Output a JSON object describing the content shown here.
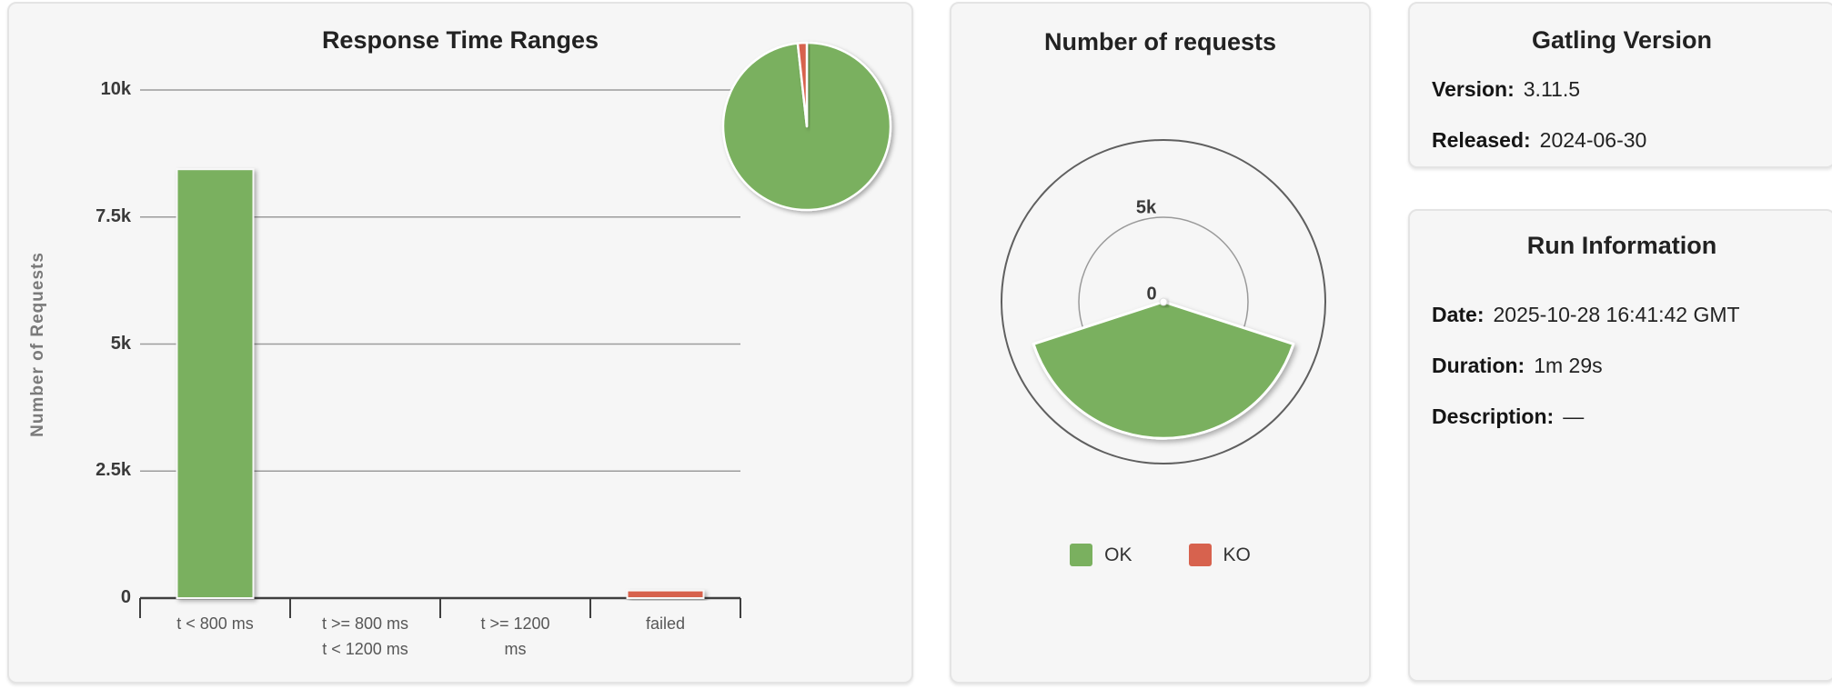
{
  "panels": {
    "response_time_ranges": {
      "title": "Response Time Ranges",
      "ylabel": "Number of Requests"
    },
    "number_of_requests": {
      "title": "Number of requests",
      "legend": {
        "ok": "OK",
        "ko": "KO"
      }
    },
    "gatling_version": {
      "title": "Gatling Version",
      "rows": [
        {
          "label": "Version:",
          "value": "3.11.5"
        },
        {
          "label": "Released:",
          "value": "2024-06-30"
        }
      ]
    },
    "run_information": {
      "title": "Run Information",
      "rows": [
        {
          "label": "Date:",
          "value": "2025-10-28 16:41:42 GMT"
        },
        {
          "label": "Duration:",
          "value": "1m 29s"
        },
        {
          "label": "Description:",
          "value": "—"
        }
      ]
    }
  },
  "colors": {
    "ok_green": "#7ab05f",
    "ko_red": "#d7624e",
    "grid": "#9c9c9c",
    "axis": "#3f3f3f",
    "outer_ring": "#5f5f5f",
    "inner_ring": "#9a9a9a",
    "panel_bg": "#f6f6f6"
  },
  "chart_data": [
    {
      "type": "bar",
      "title": "Response Time Ranges",
      "xlabel": "",
      "ylabel": "Number of Requests",
      "categories": [
        [
          "t < 800 ms"
        ],
        [
          "t >= 800 ms",
          "t < 1200 ms"
        ],
        [
          "t >= 1200",
          "ms"
        ],
        [
          "failed"
        ]
      ],
      "values": [
        8440,
        0,
        0,
        150
      ],
      "bar_colors": [
        "#7ab05f",
        "#7ab05f",
        "#7ab05f",
        "#d7624e"
      ],
      "ylim": [
        0,
        10000
      ],
      "yticks": [
        0,
        2500,
        5000,
        7500,
        10000
      ],
      "ytick_labels": [
        "0",
        "2.5k",
        "5k",
        "7.5k",
        "10k"
      ],
      "grid": true,
      "legend_position": "none"
    },
    {
      "type": "pie",
      "title": "",
      "series": [
        {
          "name": "OK",
          "value": 8440,
          "color": "#7ab05f"
        },
        {
          "name": "KO",
          "value": 150,
          "color": "#d7624e"
        }
      ],
      "start_angle_deg": 0,
      "direction": "clockwise"
    },
    {
      "type": "polar-gauge",
      "title": "Number of requests",
      "series": [
        {
          "name": "OK",
          "value": 8440,
          "color": "#7ab05f"
        },
        {
          "name": "KO",
          "value": 150,
          "color": "#d7624e"
        }
      ],
      "ylim": [
        0,
        10000
      ],
      "tick_labels": [
        "0",
        "5k"
      ],
      "ok_sector_center_deg": 180,
      "ok_sector_span_deg": 144,
      "legend_position": "bottom"
    }
  ]
}
